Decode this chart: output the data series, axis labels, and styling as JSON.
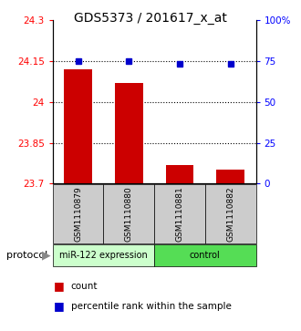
{
  "title": "GDS5373 / 201617_x_at",
  "samples": [
    "GSM1110879",
    "GSM1110880",
    "GSM1110881",
    "GSM1110882"
  ],
  "bar_values": [
    24.12,
    24.07,
    23.77,
    23.75
  ],
  "percentile_values": [
    75,
    75,
    73,
    73
  ],
  "ylim_left": [
    23.7,
    24.3
  ],
  "ylim_right": [
    0,
    100
  ],
  "yticks_left": [
    23.7,
    23.85,
    24.0,
    24.15,
    24.3
  ],
  "yticks_right": [
    0,
    25,
    50,
    75,
    100
  ],
  "ytick_labels_left": [
    "23.7",
    "23.85",
    "24",
    "24.15",
    "24.3"
  ],
  "ytick_labels_right": [
    "0",
    "25",
    "50",
    "75",
    "100%"
  ],
  "hlines": [
    24.15,
    24.0,
    23.85
  ],
  "bar_color": "#cc0000",
  "dot_color": "#0000cc",
  "bar_width": 0.55,
  "group1_label": "miR-122 expression",
  "group2_label": "control",
  "group1_color": "#ccffcc",
  "group2_color": "#55dd55",
  "sample_box_color": "#cccccc",
  "protocol_label": "protocol",
  "legend_count_label": "count",
  "legend_pct_label": "percentile rank within the sample",
  "title_fontsize": 10,
  "tick_fontsize": 7.5,
  "sample_fontsize": 6.5,
  "group_fontsize": 7,
  "legend_fontsize": 7.5
}
